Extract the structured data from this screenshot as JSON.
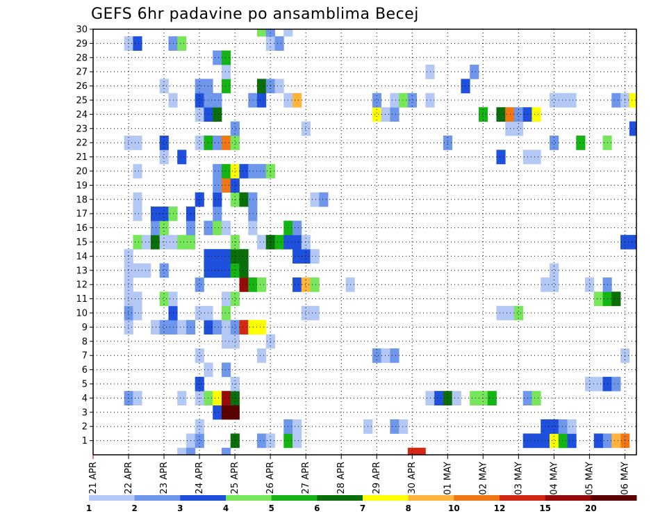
{
  "chart_data": {
    "type": "heatmap",
    "title": "GEFS 6hr padavine po ansamblima Becej",
    "x_labels": [
      "21 APR",
      "22 APR",
      "23 APR",
      "24 APR",
      "25 APR",
      "26 APR",
      "27 APR",
      "28 APR",
      "29 APR",
      "30 APR",
      "01 MAY",
      "02 MAY",
      "03 MAY",
      "04 MAY",
      "05 MAY",
      "06 MAY"
    ],
    "steps_per_day": 4,
    "n_steps": 61,
    "y_labels": [
      "1",
      "2",
      "3",
      "4",
      "5",
      "6",
      "7",
      "8",
      "9",
      "10",
      "11",
      "12",
      "13",
      "14",
      "15",
      "16",
      "17",
      "18",
      "19",
      "20",
      "21",
      "22",
      "23",
      "24",
      "25",
      "26",
      "27",
      "28",
      "29",
      "30"
    ],
    "y_range": [
      0,
      30
    ],
    "grid": true,
    "legend_position": "bottom",
    "colorbar": {
      "colors": [
        "#b4c8f5",
        "#6e96eb",
        "#1e50dc",
        "#78e65a",
        "#14b414",
        "#0a6e0a",
        "#ffff00",
        "#ffb43c",
        "#f07814",
        "#d22814",
        "#960a0a",
        "#5a0000"
      ],
      "labels": [
        "1",
        "2",
        "3",
        "4",
        "5",
        "6",
        "7",
        "8",
        "10",
        "12",
        "15",
        "20"
      ]
    },
    "cells": [
      [
        11,
        1,
        0
      ],
      [
        16,
        1,
        5
      ],
      [
        12,
        1,
        1
      ],
      [
        19,
        1,
        1
      ],
      [
        20,
        1,
        0
      ],
      [
        22,
        1,
        4
      ],
      [
        23,
        1,
        0
      ],
      [
        53,
        1,
        4
      ],
      [
        58,
        1,
        1
      ],
      [
        60,
        1,
        8
      ],
      [
        36,
        0,
        9
      ],
      [
        37,
        0,
        9
      ],
      [
        10,
        0,
        0
      ],
      [
        11,
        0,
        1
      ],
      [
        15,
        0,
        1
      ],
      [
        50,
        1,
        2
      ],
      [
        51,
        1,
        2
      ],
      [
        49,
        1,
        2
      ],
      [
        52,
        1,
        6
      ],
      [
        53,
        1,
        4
      ],
      [
        54,
        1,
        2
      ],
      [
        57,
        1,
        2
      ],
      [
        59,
        1,
        7
      ],
      [
        12,
        2,
        0
      ],
      [
        22,
        2,
        1
      ],
      [
        23,
        2,
        0
      ],
      [
        31,
        2,
        0
      ],
      [
        34,
        2,
        1
      ],
      [
        35,
        2,
        0
      ],
      [
        51,
        2,
        2
      ],
      [
        52,
        2,
        2
      ],
      [
        53,
        2,
        1
      ],
      [
        54,
        2,
        0
      ],
      [
        14,
        3,
        2
      ],
      [
        15,
        3,
        11
      ],
      [
        16,
        3,
        11
      ],
      [
        4,
        4,
        1
      ],
      [
        5,
        4,
        0
      ],
      [
        10,
        4,
        0
      ],
      [
        12,
        4,
        0
      ],
      [
        13,
        4,
        3
      ],
      [
        14,
        4,
        6
      ],
      [
        15,
        4,
        10
      ],
      [
        16,
        4,
        5
      ],
      [
        38,
        4,
        0
      ],
      [
        39,
        4,
        2
      ],
      [
        40,
        4,
        5
      ],
      [
        41,
        4,
        0
      ],
      [
        43,
        4,
        3
      ],
      [
        44,
        4,
        3
      ],
      [
        45,
        4,
        4
      ],
      [
        49,
        4,
        1
      ],
      [
        50,
        4,
        3
      ],
      [
        12,
        5,
        2
      ],
      [
        16,
        5,
        0
      ],
      [
        56,
        5,
        0
      ],
      [
        57,
        5,
        0
      ],
      [
        58,
        5,
        2
      ],
      [
        59,
        5,
        1
      ],
      [
        13,
        6,
        0
      ],
      [
        15,
        6,
        1
      ],
      [
        12,
        7,
        0
      ],
      [
        19,
        7,
        0
      ],
      [
        32,
        7,
        1
      ],
      [
        33,
        7,
        0
      ],
      [
        34,
        7,
        1
      ],
      [
        60,
        7,
        0
      ],
      [
        15,
        8,
        0
      ],
      [
        16,
        8,
        0
      ],
      [
        20,
        8,
        0
      ],
      [
        4,
        9,
        0
      ],
      [
        7,
        9,
        0
      ],
      [
        8,
        9,
        1
      ],
      [
        9,
        9,
        1
      ],
      [
        10,
        9,
        0
      ],
      [
        11,
        9,
        1
      ],
      [
        13,
        9,
        2
      ],
      [
        14,
        9,
        1
      ],
      [
        15,
        9,
        0
      ],
      [
        16,
        9,
        1
      ],
      [
        17,
        9,
        9
      ],
      [
        18,
        9,
        6
      ],
      [
        19,
        9,
        6
      ],
      [
        4,
        10,
        1
      ],
      [
        5,
        10,
        0
      ],
      [
        9,
        10,
        2
      ],
      [
        12,
        10,
        0
      ],
      [
        13,
        10,
        0
      ],
      [
        15,
        10,
        3
      ],
      [
        24,
        10,
        0
      ],
      [
        25,
        10,
        0
      ],
      [
        46,
        10,
        0
      ],
      [
        47,
        10,
        0
      ],
      [
        48,
        10,
        3
      ],
      [
        4,
        11,
        0
      ],
      [
        5,
        11,
        0
      ],
      [
        8,
        11,
        3
      ],
      [
        9,
        11,
        0
      ],
      [
        15,
        11,
        0
      ],
      [
        16,
        11,
        3
      ],
      [
        57,
        11,
        3
      ],
      [
        58,
        11,
        4
      ],
      [
        59,
        11,
        5
      ],
      [
        4,
        12,
        0
      ],
      [
        12,
        12,
        1
      ],
      [
        17,
        12,
        10
      ],
      [
        18,
        12,
        4
      ],
      [
        19,
        12,
        3
      ],
      [
        23,
        12,
        2
      ],
      [
        24,
        12,
        7
      ],
      [
        25,
        12,
        3
      ],
      [
        29,
        12,
        0
      ],
      [
        51,
        12,
        0
      ],
      [
        52,
        12,
        0
      ],
      [
        56,
        12,
        0
      ],
      [
        58,
        12,
        1
      ],
      [
        4,
        13,
        0
      ],
      [
        5,
        13,
        0
      ],
      [
        6,
        13,
        0
      ],
      [
        8,
        13,
        1
      ],
      [
        13,
        13,
        2
      ],
      [
        14,
        13,
        2
      ],
      [
        15,
        13,
        2
      ],
      [
        16,
        13,
        4
      ],
      [
        17,
        13,
        5
      ],
      [
        52,
        13,
        0
      ],
      [
        4,
        14,
        0
      ],
      [
        13,
        14,
        2
      ],
      [
        14,
        14,
        2
      ],
      [
        15,
        14,
        2
      ],
      [
        16,
        14,
        5
      ],
      [
        17,
        14,
        5
      ],
      [
        23,
        14,
        2
      ],
      [
        24,
        14,
        2
      ],
      [
        25,
        14,
        0
      ],
      [
        5,
        15,
        3
      ],
      [
        6,
        15,
        0
      ],
      [
        7,
        15,
        5
      ],
      [
        8,
        15,
        0
      ],
      [
        9,
        15,
        0
      ],
      [
        10,
        15,
        3
      ],
      [
        11,
        15,
        3
      ],
      [
        16,
        15,
        3
      ],
      [
        19,
        15,
        0
      ],
      [
        20,
        15,
        5
      ],
      [
        21,
        15,
        4
      ],
      [
        22,
        15,
        2
      ],
      [
        23,
        15,
        2
      ],
      [
        24,
        15,
        0
      ],
      [
        60,
        15,
        2
      ],
      [
        61,
        15,
        2
      ],
      [
        7,
        16,
        1
      ],
      [
        8,
        16,
        3
      ],
      [
        11,
        16,
        1
      ],
      [
        13,
        16,
        1
      ],
      [
        14,
        16,
        3
      ],
      [
        15,
        16,
        0
      ],
      [
        18,
        16,
        0
      ],
      [
        22,
        16,
        4
      ],
      [
        23,
        16,
        1
      ],
      [
        5,
        17,
        0
      ],
      [
        7,
        17,
        2
      ],
      [
        8,
        17,
        2
      ],
      [
        9,
        17,
        3
      ],
      [
        11,
        17,
        2
      ],
      [
        14,
        17,
        1
      ],
      [
        18,
        17,
        1
      ],
      [
        5,
        18,
        0
      ],
      [
        12,
        18,
        2
      ],
      [
        14,
        18,
        2
      ],
      [
        16,
        18,
        3
      ],
      [
        17,
        18,
        5
      ],
      [
        18,
        18,
        1
      ],
      [
        25,
        18,
        0
      ],
      [
        26,
        18,
        1
      ],
      [
        14,
        19,
        1
      ],
      [
        15,
        19,
        8
      ],
      [
        16,
        19,
        2
      ],
      [
        5,
        20,
        0
      ],
      [
        14,
        20,
        1
      ],
      [
        15,
        20,
        4
      ],
      [
        16,
        20,
        6
      ],
      [
        17,
        20,
        2
      ],
      [
        18,
        20,
        1
      ],
      [
        19,
        20,
        1
      ],
      [
        20,
        20,
        3
      ],
      [
        8,
        21,
        0
      ],
      [
        10,
        21,
        2
      ],
      [
        46,
        21,
        2
      ],
      [
        49,
        21,
        0
      ],
      [
        50,
        21,
        0
      ],
      [
        4,
        22,
        0
      ],
      [
        5,
        22,
        0
      ],
      [
        8,
        22,
        2
      ],
      [
        12,
        22,
        0
      ],
      [
        13,
        22,
        4
      ],
      [
        14,
        22,
        1
      ],
      [
        15,
        22,
        8
      ],
      [
        16,
        22,
        3
      ],
      [
        40,
        22,
        1
      ],
      [
        52,
        22,
        1
      ],
      [
        55,
        22,
        4
      ],
      [
        58,
        22,
        3
      ],
      [
        16,
        23,
        1
      ],
      [
        24,
        23,
        0
      ],
      [
        47,
        23,
        0
      ],
      [
        48,
        23,
        0
      ],
      [
        61,
        23,
        2
      ],
      [
        12,
        24,
        0
      ],
      [
        13,
        24,
        2
      ],
      [
        14,
        24,
        5
      ],
      [
        32,
        24,
        6
      ],
      [
        33,
        24,
        0
      ],
      [
        34,
        24,
        1
      ],
      [
        44,
        24,
        4
      ],
      [
        46,
        24,
        5
      ],
      [
        47,
        24,
        8
      ],
      [
        48,
        24,
        1
      ],
      [
        49,
        24,
        2
      ],
      [
        50,
        24,
        6
      ],
      [
        9,
        25,
        0
      ],
      [
        12,
        25,
        2
      ],
      [
        13,
        25,
        1
      ],
      [
        14,
        25,
        1
      ],
      [
        18,
        25,
        1
      ],
      [
        19,
        25,
        2
      ],
      [
        22,
        25,
        0
      ],
      [
        23,
        25,
        7
      ],
      [
        32,
        25,
        1
      ],
      [
        34,
        25,
        0
      ],
      [
        35,
        25,
        3
      ],
      [
        36,
        25,
        1
      ],
      [
        38,
        25,
        0
      ],
      [
        52,
        25,
        0
      ],
      [
        53,
        25,
        0
      ],
      [
        54,
        25,
        0
      ],
      [
        59,
        25,
        1
      ],
      [
        60,
        25,
        0
      ],
      [
        61,
        25,
        6
      ],
      [
        8,
        26,
        0
      ],
      [
        12,
        26,
        1
      ],
      [
        13,
        26,
        1
      ],
      [
        15,
        26,
        4
      ],
      [
        19,
        26,
        5
      ],
      [
        20,
        26,
        1
      ],
      [
        21,
        26,
        0
      ],
      [
        42,
        26,
        2
      ],
      [
        15,
        27,
        0
      ],
      [
        38,
        27,
        0
      ],
      [
        43,
        27,
        1
      ],
      [
        14,
        28,
        1
      ],
      [
        15,
        28,
        4
      ],
      [
        4,
        29,
        0
      ],
      [
        5,
        29,
        2
      ],
      [
        9,
        29,
        1
      ],
      [
        10,
        29,
        3
      ],
      [
        20,
        29,
        0
      ],
      [
        21,
        29,
        1
      ],
      [
        19,
        30,
        3
      ],
      [
        20,
        30,
        1
      ],
      [
        22,
        30,
        0
      ]
    ]
  }
}
